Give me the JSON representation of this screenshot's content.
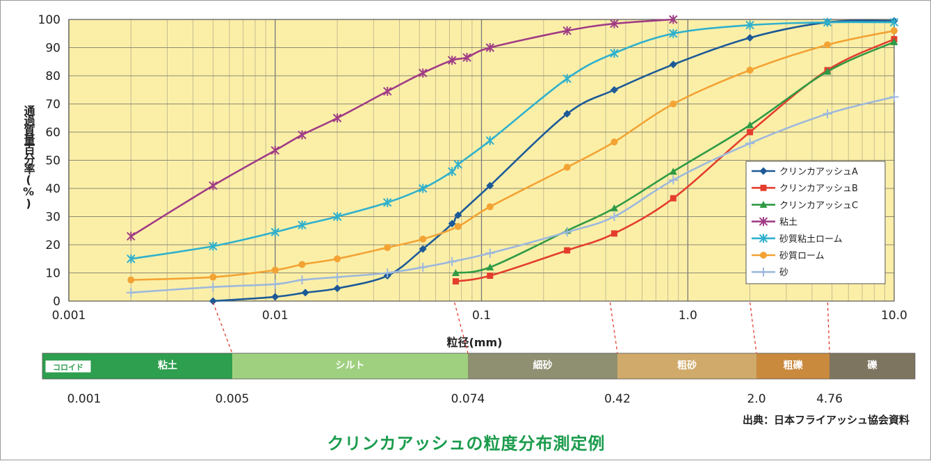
{
  "chart_data": {
    "type": "line",
    "title": "",
    "xlabel": "粒径(mm)",
    "ylabel": "通過質量百分率(%)",
    "x_scale": "log",
    "xlim": [
      0.001,
      10.0
    ],
    "ylim": [
      0,
      100
    ],
    "xticks": [
      "0.001",
      "0.01",
      "0.1",
      "1.0",
      "10.0"
    ],
    "yticks": [
      "0",
      "10",
      "20",
      "30",
      "40",
      "50",
      "60",
      "70",
      "80",
      "90",
      "100"
    ],
    "grid": true,
    "legend_position": "right",
    "series": [
      {
        "name": "クリンカアッシュA",
        "color": "#1d5a97",
        "marker": "diamond",
        "x": [
          0.005,
          0.01,
          0.014,
          0.02,
          0.035,
          0.052,
          0.072,
          0.077,
          0.11,
          0.26,
          0.44,
          0.85,
          2.0,
          4.75,
          10.0
        ],
        "y": [
          0,
          1.5,
          3,
          4.5,
          9,
          18.5,
          27.5,
          30.5,
          41,
          66.5,
          75,
          84,
          93.5,
          99,
          99.5
        ]
      },
      {
        "name": "クリンカアッシュB",
        "color": "#e43d2d",
        "marker": "square",
        "x": [
          0.075,
          0.11,
          0.26,
          0.44,
          0.85,
          2.0,
          4.75,
          10.0
        ],
        "y": [
          7,
          9,
          18,
          24,
          36.5,
          60,
          82,
          93
        ]
      },
      {
        "name": "クリンカアッシュC",
        "color": "#2f9a45",
        "marker": "triangle",
        "x": [
          0.075,
          0.11,
          0.26,
          0.44,
          0.85,
          2.0,
          4.75,
          10.0
        ],
        "y": [
          10,
          12,
          25,
          33,
          46,
          62.5,
          81.5,
          92
        ]
      },
      {
        "name": "粘土",
        "color": "#a03c85",
        "marker": "star",
        "x": [
          0.002,
          0.005,
          0.01,
          0.0135,
          0.02,
          0.035,
          0.052,
          0.072,
          0.085,
          0.11,
          0.26,
          0.44,
          0.85
        ],
        "y": [
          23,
          41,
          53.5,
          59,
          65,
          74.5,
          81,
          85.5,
          86.5,
          90,
          96,
          98.5,
          100
        ]
      },
      {
        "name": "砂質粘土ローム",
        "color": "#2fb0cc",
        "marker": "star",
        "x": [
          0.002,
          0.005,
          0.01,
          0.0135,
          0.02,
          0.035,
          0.052,
          0.072,
          0.077,
          0.11,
          0.26,
          0.44,
          0.85,
          2.0,
          4.75,
          10.0
        ],
        "y": [
          15,
          19.5,
          24.5,
          27,
          30,
          35,
          40,
          46,
          48.5,
          57,
          79,
          88,
          95,
          98,
          99,
          99
        ]
      },
      {
        "name": "砂質ローム",
        "color": "#f3a333",
        "marker": "circle",
        "x": [
          0.002,
          0.005,
          0.01,
          0.0135,
          0.02,
          0.035,
          0.052,
          0.077,
          0.11,
          0.26,
          0.44,
          0.85,
          2.0,
          4.75,
          10.0
        ],
        "y": [
          7.5,
          8.5,
          11,
          13,
          15,
          19,
          22,
          26.5,
          33.5,
          47.5,
          56.5,
          70,
          82,
          91,
          96
        ]
      },
      {
        "name": "砂",
        "color": "#9db8dc",
        "marker": "cross",
        "x": [
          0.002,
          0.005,
          0.01,
          0.0135,
          0.02,
          0.035,
          0.052,
          0.072,
          0.11,
          0.26,
          0.44,
          0.85,
          2.0,
          4.75,
          10.0
        ],
        "y": [
          3,
          5,
          6,
          7.5,
          8.5,
          10,
          12,
          14,
          17,
          24.5,
          30,
          43,
          56,
          66.5,
          72.5
        ]
      }
    ]
  },
  "soil_scale": {
    "bands": [
      {
        "label": "コロイド",
        "color": "#2e9e4f"
      },
      {
        "label": "粘土",
        "color": "#2e9e4f"
      },
      {
        "label": "シルト",
        "color": "#9fd07f"
      },
      {
        "label": "細砂",
        "color": "#8f8f72"
      },
      {
        "label": "粗砂",
        "color": "#d0aa6a"
      },
      {
        "label": "粗礫",
        "color": "#c98a3e"
      },
      {
        "label": "礫",
        "color": "#7e7560"
      }
    ],
    "boundaries": [
      "0.001",
      "0.005",
      "0.074",
      "0.42",
      "2.0",
      "4.76"
    ],
    "boundary_values": [
      0.005,
      0.074,
      0.42,
      2.0,
      4.76
    ]
  },
  "source": "出典：日本フライアッシュ協会資料",
  "caption": "クリンカアッシュの粒度分布測定例"
}
